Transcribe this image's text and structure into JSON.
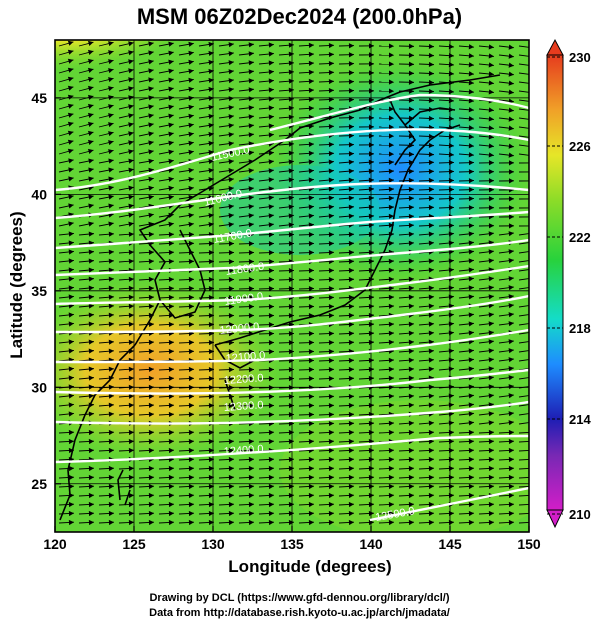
{
  "title": "MSM 06Z02Dec2024 (200.0hPa)",
  "map": {
    "xlabel": "Longitude (degrees)",
    "ylabel": "Latitude  (degrees)",
    "lon_range": [
      120,
      150
    ],
    "lat_range": [
      22.5,
      48
    ],
    "x_ticks": [
      "120",
      "125",
      "130",
      "135",
      "140",
      "145",
      "150"
    ],
    "y_ticks": [
      "25",
      "30",
      "35",
      "40",
      "45"
    ],
    "contour_labels": [
      "11500.0",
      "11600.0",
      "11700.0",
      "11800.0",
      "11900.0",
      "12000.0",
      "12100.0",
      "12200.0",
      "12300.0",
      "12400.0",
      "12500.0"
    ]
  },
  "colorbar": {
    "ticks": [
      "230",
      "226",
      "222",
      "218",
      "214",
      "210"
    ],
    "range": [
      210,
      230
    ],
    "colors": [
      "#d21ec8",
      "#1e1eb4",
      "#1e8cff",
      "#14dcc8",
      "#28d23c",
      "#8cdc28",
      "#e6e628",
      "#f0a028",
      "#e63c1e"
    ]
  },
  "credits": {
    "line1": "Drawing by DCL (https://www.gfd-dennou.org/library/dcl/)",
    "line2": "Data from http://database.rish.kyoto-u.ac.jp/arch/jmadata/"
  }
}
